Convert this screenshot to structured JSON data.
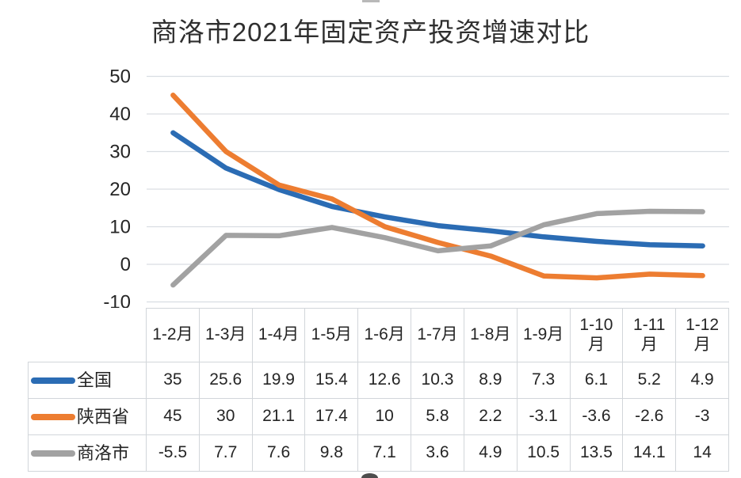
{
  "title": "商洛市2021年固定资产投资增速对比",
  "colors": {
    "national": "#2B6CB4",
    "shaanxi": "#ED7D31",
    "shangluo": "#A2A2A2",
    "gridline": "#d9dde2",
    "table_border": "#d2d6da",
    "text": "#252525"
  },
  "chart_data": {
    "type": "line",
    "title": "商洛市2021年固定资产投资增速对比",
    "categories": [
      "1-2月",
      "1-3月",
      "1-4月",
      "1-5月",
      "1-6月",
      "1-7月",
      "1-8月",
      "1-9月",
      "1-10月",
      "1-11月",
      "1-12月"
    ],
    "series": [
      {
        "id": "national",
        "name": "全国",
        "color": "#2B6CB4",
        "values": [
          35,
          25.6,
          19.9,
          15.4,
          12.6,
          10.3,
          8.9,
          7.3,
          6.1,
          5.2,
          4.9
        ]
      },
      {
        "id": "shaanxi",
        "name": "陕西省",
        "color": "#ED7D31",
        "values": [
          45,
          30,
          21.1,
          17.4,
          10,
          5.8,
          2.2,
          -3.1,
          -3.6,
          -2.6,
          -3
        ]
      },
      {
        "id": "shangluo",
        "name": "商洛市",
        "color": "#A2A2A2",
        "values": [
          -5.5,
          7.7,
          7.6,
          9.8,
          7.1,
          3.6,
          4.9,
          10.5,
          13.5,
          14.1,
          14
        ]
      }
    ],
    "y_ticks": [
      50,
      40,
      30,
      20,
      10,
      0,
      -10
    ],
    "ylim": [
      -10,
      50
    ],
    "xlabel": "",
    "ylabel": "",
    "grid": true,
    "legend_position": "data-table-left",
    "data_table_shown": true
  }
}
